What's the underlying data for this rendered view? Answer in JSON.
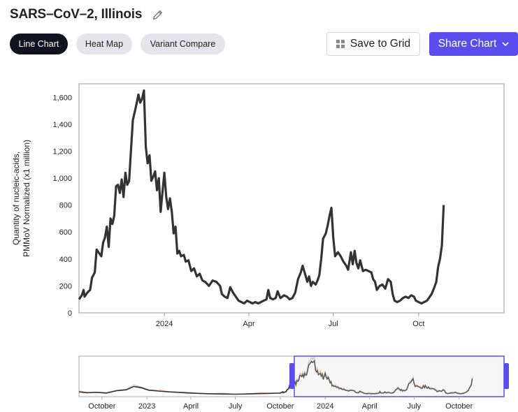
{
  "header": {
    "title": "SARS–CoV–2, Illinois",
    "edit_icon": "pencil-icon"
  },
  "tabs": [
    {
      "label": "Line Chart",
      "active": true
    },
    {
      "label": "Heat Map",
      "active": false
    },
    {
      "label": "Variant Compare",
      "active": false
    }
  ],
  "actions": {
    "save_label": "Save to Grid",
    "save_icon": "grid-icon",
    "share_label": "Share Chart",
    "share_icon": "chevron-down-icon",
    "accent": "#5b4cf0"
  },
  "chart_data": {
    "type": "line",
    "ylabel_line1": "Quantity of nucleic-acids,",
    "ylabel_line2": "PMMoV Normalized (x1 million)",
    "ylim": [
      0,
      1700
    ],
    "y_ticks": [
      0,
      200,
      400,
      600,
      800,
      1000,
      1200,
      1400,
      1600
    ],
    "y_tick_labels": [
      "0",
      "200",
      "400",
      "600",
      "800",
      "1,000",
      "1,200",
      "1,400",
      "1,600"
    ],
    "x_ticks": [
      {
        "label": "2024",
        "date": "2024-01-01"
      },
      {
        "label": "Apr",
        "date": "2024-04-01"
      },
      {
        "label": "Jul",
        "date": "2024-07-01"
      },
      {
        "label": "Oct",
        "date": "2024-10-01"
      }
    ],
    "xlim": [
      "2023-10-01",
      "2025-01-01"
    ],
    "series": [
      {
        "color": "#333333",
        "points": [
          [
            "2023-10-01",
            100
          ],
          [
            "2023-10-04",
            130
          ],
          [
            "2023-10-06",
            170
          ],
          [
            "2023-10-07",
            120
          ],
          [
            "2023-10-10",
            150
          ],
          [
            "2023-10-13",
            170
          ],
          [
            "2023-10-15",
            260
          ],
          [
            "2023-10-18",
            300
          ],
          [
            "2023-10-20",
            470
          ],
          [
            "2023-10-23",
            440
          ],
          [
            "2023-10-25",
            420
          ],
          [
            "2023-10-27",
            520
          ],
          [
            "2023-10-29",
            560
          ],
          [
            "2023-10-31",
            640
          ],
          [
            "2023-11-02",
            490
          ],
          [
            "2023-11-04",
            700
          ],
          [
            "2023-11-06",
            660
          ],
          [
            "2023-11-08",
            720
          ],
          [
            "2023-11-10",
            940
          ],
          [
            "2023-11-12",
            950
          ],
          [
            "2023-11-14",
            890
          ],
          [
            "2023-11-16",
            990
          ],
          [
            "2023-11-18",
            860
          ],
          [
            "2023-11-20",
            1040
          ],
          [
            "2023-11-22",
            950
          ],
          [
            "2023-11-24",
            980
          ],
          [
            "2023-11-26",
            1200
          ],
          [
            "2023-11-28",
            1430
          ],
          [
            "2023-11-30",
            1490
          ],
          [
            "2023-12-02",
            1550
          ],
          [
            "2023-12-04",
            1620
          ],
          [
            "2023-12-06",
            1560
          ],
          [
            "2023-12-08",
            1590
          ],
          [
            "2023-12-10",
            1650
          ],
          [
            "2023-12-12",
            1230
          ],
          [
            "2023-12-14",
            1110
          ],
          [
            "2023-12-16",
            1170
          ],
          [
            "2023-12-18",
            980
          ],
          [
            "2023-12-20",
            1010
          ],
          [
            "2023-12-22",
            1050
          ],
          [
            "2023-12-24",
            910
          ],
          [
            "2023-12-26",
            1000
          ],
          [
            "2023-12-28",
            750
          ],
          [
            "2023-12-30",
            900
          ],
          [
            "2024-01-01",
            1040
          ],
          [
            "2024-01-03",
            860
          ],
          [
            "2024-01-05",
            770
          ],
          [
            "2024-01-07",
            850
          ],
          [
            "2024-01-09",
            750
          ],
          [
            "2024-01-11",
            590
          ],
          [
            "2024-01-13",
            640
          ],
          [
            "2024-01-15",
            440
          ],
          [
            "2024-01-17",
            460
          ],
          [
            "2024-01-19",
            420
          ],
          [
            "2024-01-22",
            430
          ],
          [
            "2024-01-24",
            380
          ],
          [
            "2024-01-27",
            390
          ],
          [
            "2024-01-30",
            310
          ],
          [
            "2024-02-02",
            330
          ],
          [
            "2024-02-05",
            270
          ],
          [
            "2024-02-08",
            290
          ],
          [
            "2024-02-11",
            240
          ],
          [
            "2024-02-14",
            230
          ],
          [
            "2024-02-18",
            200
          ],
          [
            "2024-02-22",
            240
          ],
          [
            "2024-02-26",
            230
          ],
          [
            "2024-03-01",
            200
          ],
          [
            "2024-03-03",
            140
          ],
          [
            "2024-03-06",
            120
          ],
          [
            "2024-03-09",
            110
          ],
          [
            "2024-03-12",
            190
          ],
          [
            "2024-03-15",
            150
          ],
          [
            "2024-03-18",
            120
          ],
          [
            "2024-03-21",
            90
          ],
          [
            "2024-03-24",
            80
          ],
          [
            "2024-03-27",
            70
          ],
          [
            "2024-03-30",
            90
          ],
          [
            "2024-04-02",
            80
          ],
          [
            "2024-04-05",
            70
          ],
          [
            "2024-04-08",
            80
          ],
          [
            "2024-04-11",
            70
          ],
          [
            "2024-04-14",
            80
          ],
          [
            "2024-04-17",
            90
          ],
          [
            "2024-04-20",
            100
          ],
          [
            "2024-04-22",
            170
          ],
          [
            "2024-04-24",
            110
          ],
          [
            "2024-04-27",
            100
          ],
          [
            "2024-04-30",
            110
          ],
          [
            "2024-05-02",
            160
          ],
          [
            "2024-05-05",
            110
          ],
          [
            "2024-05-09",
            130
          ],
          [
            "2024-05-12",
            120
          ],
          [
            "2024-05-15",
            100
          ],
          [
            "2024-05-18",
            110
          ],
          [
            "2024-05-21",
            150
          ],
          [
            "2024-05-24",
            250
          ],
          [
            "2024-05-27",
            300
          ],
          [
            "2024-05-29",
            350
          ],
          [
            "2024-06-01",
            280
          ],
          [
            "2024-06-03",
            230
          ],
          [
            "2024-06-05",
            270
          ],
          [
            "2024-06-07",
            200
          ],
          [
            "2024-06-09",
            230
          ],
          [
            "2024-06-12",
            210
          ],
          [
            "2024-06-14",
            240
          ],
          [
            "2024-06-16",
            280
          ],
          [
            "2024-06-18",
            400
          ],
          [
            "2024-06-20",
            550
          ],
          [
            "2024-06-23",
            590
          ],
          [
            "2024-06-25",
            650
          ],
          [
            "2024-06-27",
            720
          ],
          [
            "2024-06-29",
            780
          ],
          [
            "2024-07-01",
            560
          ],
          [
            "2024-07-03",
            420
          ],
          [
            "2024-07-06",
            450
          ],
          [
            "2024-07-09",
            420
          ],
          [
            "2024-07-12",
            380
          ],
          [
            "2024-07-15",
            350
          ],
          [
            "2024-07-17",
            320
          ],
          [
            "2024-07-20",
            450
          ],
          [
            "2024-07-22",
            360
          ],
          [
            "2024-07-24",
            460
          ],
          [
            "2024-07-26",
            370
          ],
          [
            "2024-07-28",
            330
          ],
          [
            "2024-07-30",
            390
          ],
          [
            "2024-08-02",
            310
          ],
          [
            "2024-08-05",
            320
          ],
          [
            "2024-08-08",
            310
          ],
          [
            "2024-08-11",
            300
          ],
          [
            "2024-08-13",
            250
          ],
          [
            "2024-08-15",
            230
          ],
          [
            "2024-08-17",
            170
          ],
          [
            "2024-08-20",
            200
          ],
          [
            "2024-08-23",
            210
          ],
          [
            "2024-08-26",
            180
          ],
          [
            "2024-08-29",
            250
          ],
          [
            "2024-09-01",
            230
          ],
          [
            "2024-09-03",
            140
          ],
          [
            "2024-09-05",
            90
          ],
          [
            "2024-09-08",
            80
          ],
          [
            "2024-09-11",
            90
          ],
          [
            "2024-09-14",
            110
          ],
          [
            "2024-09-17",
            120
          ],
          [
            "2024-09-20",
            110
          ],
          [
            "2024-09-23",
            130
          ],
          [
            "2024-09-26",
            120
          ],
          [
            "2024-09-28",
            90
          ],
          [
            "2024-10-01",
            80
          ],
          [
            "2024-10-04",
            70
          ],
          [
            "2024-10-07",
            80
          ],
          [
            "2024-10-10",
            90
          ],
          [
            "2024-10-12",
            110
          ],
          [
            "2024-10-15",
            140
          ],
          [
            "2024-10-18",
            190
          ],
          [
            "2024-10-20",
            230
          ],
          [
            "2024-10-22",
            340
          ],
          [
            "2024-10-24",
            400
          ],
          [
            "2024-10-26",
            500
          ],
          [
            "2024-10-28",
            800
          ]
        ]
      }
    ]
  },
  "navigator": {
    "x_tick_labels": [
      "October",
      "2023",
      "April",
      "July",
      "October",
      "2024",
      "April",
      "July",
      "October"
    ],
    "series_colors": [
      "#333333",
      "#f4a582",
      "#7fc8a9"
    ],
    "selection_color": "#5b4cf0"
  }
}
